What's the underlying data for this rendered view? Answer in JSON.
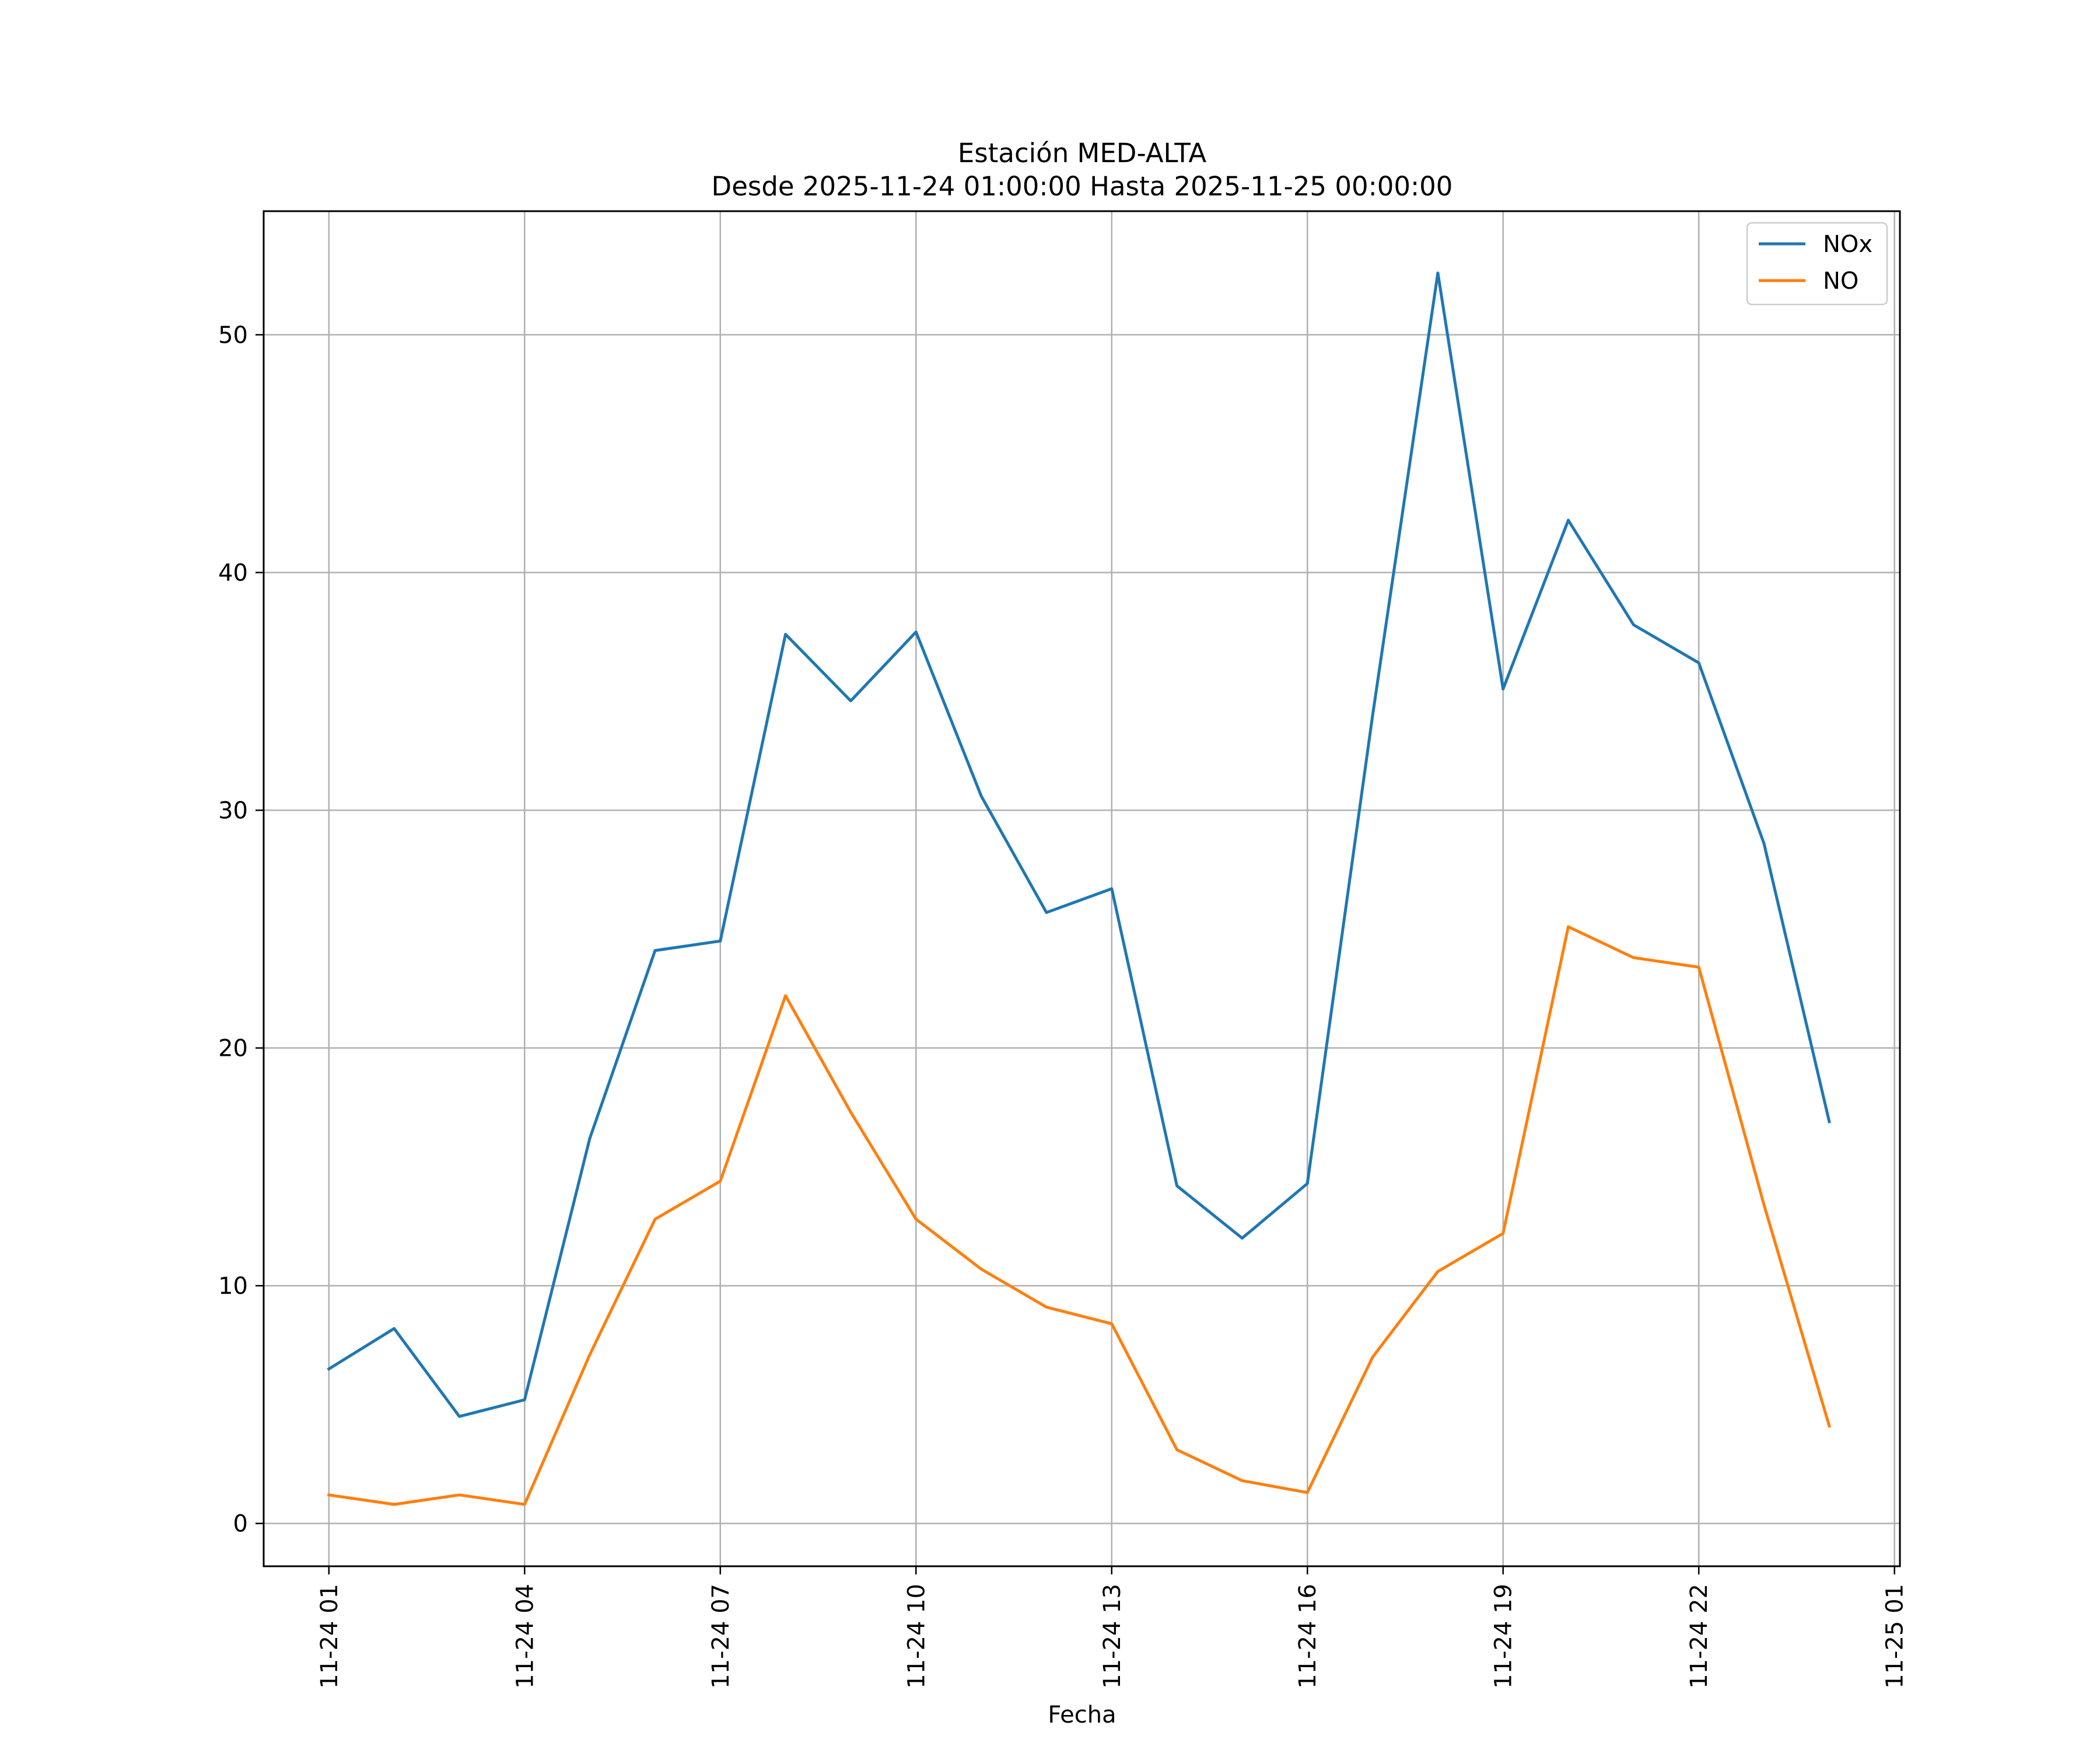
{
  "chart_data": {
    "type": "line",
    "title": "Estación MED-ALTA",
    "subtitle": "Desde 2025-11-24 01:00:00 Hasta 2025-11-25 00:00:00",
    "xlabel": "Fecha",
    "ylabel": "",
    "x": [
      "2025-11-24 01:00",
      "2025-11-24 02:00",
      "2025-11-24 03:00",
      "2025-11-24 04:00",
      "2025-11-24 05:00",
      "2025-11-24 06:00",
      "2025-11-24 07:00",
      "2025-11-24 08:00",
      "2025-11-24 09:00",
      "2025-11-24 10:00",
      "2025-11-24 11:00",
      "2025-11-24 12:00",
      "2025-11-24 13:00",
      "2025-11-24 14:00",
      "2025-11-24 15:00",
      "2025-11-24 16:00",
      "2025-11-24 17:00",
      "2025-11-24 18:00",
      "2025-11-24 19:00",
      "2025-11-24 20:00",
      "2025-11-24 21:00",
      "2025-11-24 22:00",
      "2025-11-24 23:00",
      "2025-11-25 00:00"
    ],
    "xticks": [
      {
        "value": "2025-11-24 01:00",
        "label": "11-24 01"
      },
      {
        "value": "2025-11-24 04:00",
        "label": "11-24 04"
      },
      {
        "value": "2025-11-24 07:00",
        "label": "11-24 07"
      },
      {
        "value": "2025-11-24 10:00",
        "label": "11-24 10"
      },
      {
        "value": "2025-11-24 13:00",
        "label": "11-24 13"
      },
      {
        "value": "2025-11-24 16:00",
        "label": "11-24 16"
      },
      {
        "value": "2025-11-24 19:00",
        "label": "11-24 19"
      },
      {
        "value": "2025-11-24 22:00",
        "label": "11-24 22"
      },
      {
        "value": "2025-11-25 01:00",
        "label": "11-25 01"
      }
    ],
    "xlim": [
      "2025-11-24 00:00",
      "2025-11-25 01:05"
    ],
    "yticks": [
      0,
      10,
      20,
      30,
      40,
      50
    ],
    "ylim": [
      -1.8,
      55.2
    ],
    "grid": true,
    "legend_position": "top-right",
    "series": [
      {
        "name": "NOx",
        "color": "#1f77b4",
        "values": [
          6.5,
          8.2,
          4.5,
          5.2,
          16.2,
          24.1,
          24.5,
          37.4,
          34.6,
          37.5,
          30.6,
          25.7,
          26.7,
          14.2,
          12.0,
          14.3,
          34.0,
          52.6,
          35.1,
          42.2,
          37.8,
          36.2,
          28.6,
          16.9
        ]
      },
      {
        "name": "NO",
        "color": "#ff7f0e",
        "values": [
          1.2,
          0.8,
          1.2,
          0.8,
          7.1,
          12.8,
          14.4,
          22.2,
          17.3,
          12.8,
          10.7,
          9.1,
          8.4,
          3.1,
          1.8,
          1.3,
          7.0,
          10.6,
          12.2,
          25.1,
          23.8,
          23.4,
          13.4,
          4.1
        ]
      }
    ]
  }
}
